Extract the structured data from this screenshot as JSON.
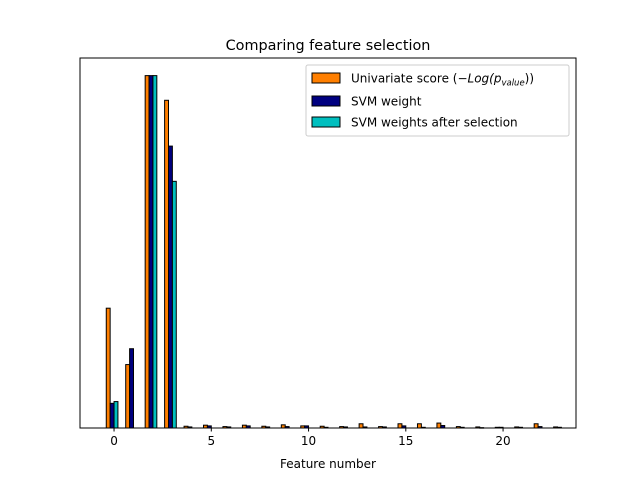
{
  "chart_data": {
    "type": "bar",
    "title": "Comparing feature selection",
    "xlabel": "Feature number",
    "ylabel": "",
    "xlim": [
      -1.75,
      23.75
    ],
    "ylim": [
      0,
      1.05
    ],
    "xticks": [
      0,
      5,
      10,
      15,
      20
    ],
    "yticks_visible": false,
    "grid": false,
    "legend_position": "top-right",
    "bar_edge_color": "#000000",
    "categories": [
      0,
      1,
      2,
      3,
      4,
      5,
      6,
      7,
      8,
      9,
      10,
      11,
      12,
      13,
      14,
      15,
      16,
      17,
      18,
      19,
      20,
      21,
      22,
      23
    ],
    "series": [
      {
        "name": "Univariate score (−Log(p_value))",
        "legend_main": "Univariate score (",
        "legend_math": "−Log(p",
        "legend_sub": "value",
        "legend_end": "))",
        "color": "#ff7f00",
        "offset": -0.4,
        "values": [
          0.34,
          0.18,
          1.0,
          0.93,
          0.005,
          0.008,
          0.004,
          0.008,
          0.005,
          0.009,
          0.006,
          0.005,
          0.004,
          0.012,
          0.004,
          0.012,
          0.012,
          0.014,
          0.004,
          0.003,
          0.002,
          0.003,
          0.012,
          0.003
        ]
      },
      {
        "name": "SVM weight",
        "legend_main": "SVM weight",
        "color": "#000080",
        "offset": -0.2,
        "values": [
          0.07,
          0.225,
          1.0,
          0.8,
          0.003,
          0.006,
          0.003,
          0.006,
          0.003,
          0.004,
          0.006,
          0.002,
          0.003,
          0.003,
          0.003,
          0.006,
          0.002,
          0.007,
          0.002,
          0.001,
          0.002,
          0.002,
          0.004,
          0.002
        ]
      },
      {
        "name": "SVM weights after selection",
        "legend_main": "SVM weights after selection",
        "color": "#00bfbf",
        "offset": 0.0,
        "values": [
          0.075,
          0,
          1.0,
          0.7,
          0,
          0,
          0,
          0,
          0,
          0,
          0,
          0,
          0,
          0,
          0,
          0,
          0,
          0,
          0,
          0,
          0,
          0,
          0,
          0
        ]
      }
    ]
  }
}
